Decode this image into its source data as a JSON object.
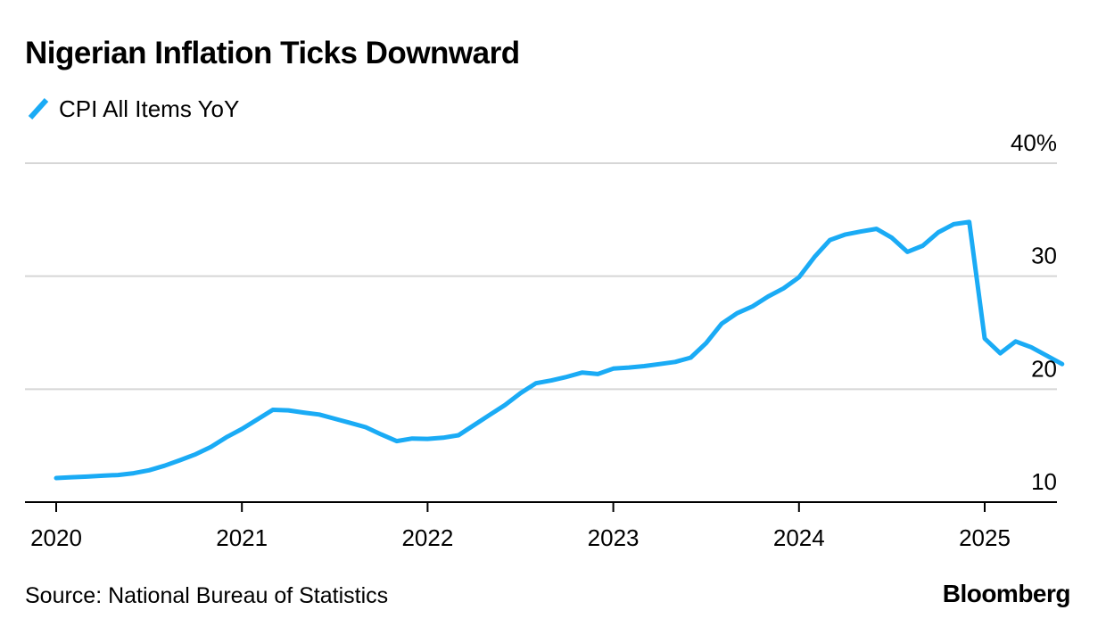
{
  "chart_data": {
    "type": "line",
    "title": "Nigerian Inflation Ticks Downward",
    "subtitle": "",
    "xlabel": "",
    "ylabel": "",
    "y_unit": "%",
    "ylim": [
      10,
      40
    ],
    "y_ticks": [
      {
        "value": 40,
        "label": "40%"
      },
      {
        "value": 30,
        "label": "30"
      },
      {
        "value": 20,
        "label": "20"
      },
      {
        "value": 10,
        "label": "10"
      }
    ],
    "x_ticks": [
      {
        "value": "2020-01",
        "label": "2020"
      },
      {
        "value": "2021-01",
        "label": "2021"
      },
      {
        "value": "2022-01",
        "label": "2022"
      },
      {
        "value": "2023-01",
        "label": "2023"
      },
      {
        "value": "2024-01",
        "label": "2024"
      },
      {
        "value": "2025-01",
        "label": "2025"
      }
    ],
    "grid": true,
    "legend_position": "top-left",
    "series": [
      {
        "name": "CPI All Items YoY",
        "color": "#1aabf5",
        "x": [
          "2020-01",
          "2020-02",
          "2020-03",
          "2020-04",
          "2020-05",
          "2020-06",
          "2020-07",
          "2020-08",
          "2020-09",
          "2020-10",
          "2020-11",
          "2020-12",
          "2021-01",
          "2021-02",
          "2021-03",
          "2021-04",
          "2021-05",
          "2021-06",
          "2021-07",
          "2021-08",
          "2021-09",
          "2021-10",
          "2021-11",
          "2021-12",
          "2022-01",
          "2022-02",
          "2022-03",
          "2022-04",
          "2022-05",
          "2022-06",
          "2022-07",
          "2022-08",
          "2022-09",
          "2022-10",
          "2022-11",
          "2022-12",
          "2023-01",
          "2023-02",
          "2023-03",
          "2023-04",
          "2023-05",
          "2023-06",
          "2023-07",
          "2023-08",
          "2023-09",
          "2023-10",
          "2023-11",
          "2023-12",
          "2024-01",
          "2024-02",
          "2024-03",
          "2024-04",
          "2024-05",
          "2024-06",
          "2024-07",
          "2024-08",
          "2024-09",
          "2024-10",
          "2024-11",
          "2024-12",
          "2025-01",
          "2025-02",
          "2025-03",
          "2025-04",
          "2025-05",
          "2025-06"
        ],
        "values": [
          12.13,
          12.2,
          12.26,
          12.34,
          12.4,
          12.56,
          12.82,
          13.22,
          13.71,
          14.23,
          14.89,
          15.75,
          16.47,
          17.33,
          18.17,
          18.12,
          17.93,
          17.75,
          17.38,
          17.01,
          16.63,
          15.99,
          15.4,
          15.63,
          15.6,
          15.7,
          15.92,
          16.82,
          17.71,
          18.6,
          19.64,
          20.52,
          20.77,
          21.09,
          21.47,
          21.34,
          21.82,
          21.91,
          22.04,
          22.22,
          22.41,
          22.79,
          24.08,
          25.8,
          26.72,
          27.33,
          28.2,
          28.92,
          29.9,
          31.7,
          33.2,
          33.69,
          33.95,
          34.19,
          33.4,
          32.15,
          32.7,
          33.88,
          34.6,
          34.8,
          24.48,
          23.18,
          24.23,
          23.71,
          22.97,
          22.22
        ]
      }
    ]
  },
  "source": "Source: National Bureau of Statistics",
  "brand": "Bloomberg"
}
